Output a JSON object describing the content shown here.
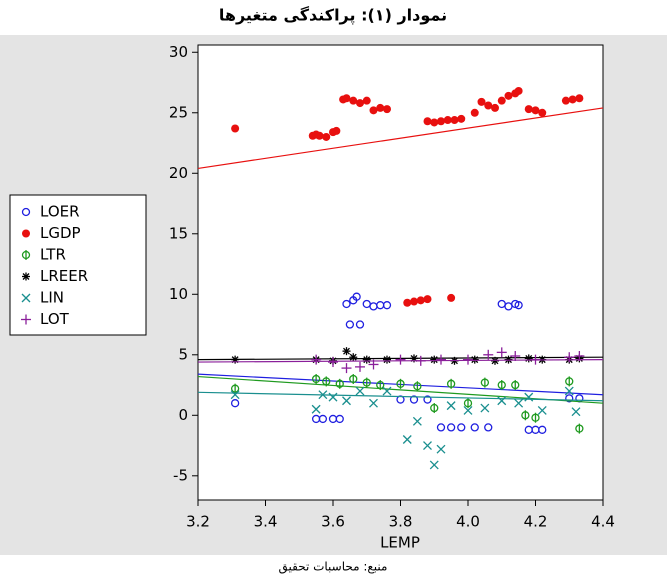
{
  "chart_data": {
    "type": "scatter",
    "title": "نمودار (۱): پراکندگی متغیرها",
    "xlabel": "LEMP",
    "source": "منبع: محاسبات تحقیق",
    "xlim": [
      3.2,
      4.4
    ],
    "ylim": [
      -7,
      30.6
    ],
    "xticks": [
      3.2,
      3.4,
      3.6,
      3.8,
      {
        "value": 4,
        "label": "4.0"
      },
      4.2,
      4.4
    ],
    "yticks": [
      -5,
      0,
      5,
      10,
      15,
      20,
      25,
      30
    ],
    "series": [
      {
        "name": "LOER",
        "color": "#1f1fe0",
        "marker": "open-circle",
        "x": [
          3.31,
          3.55,
          3.57,
          3.6,
          3.62,
          3.64,
          3.65,
          3.66,
          3.67,
          3.68,
          3.7,
          3.72,
          3.74,
          3.76,
          3.8,
          3.84,
          3.88,
          3.92,
          3.95,
          3.98,
          4.02,
          4.06,
          4.1,
          4.12,
          4.14,
          4.15,
          4.18,
          4.2,
          4.22,
          4.3,
          4.33
        ],
        "values": [
          1.0,
          -0.3,
          -0.3,
          -0.3,
          -0.3,
          9.2,
          7.5,
          9.5,
          9.8,
          7.5,
          9.2,
          9.0,
          9.1,
          9.1,
          1.3,
          1.3,
          1.3,
          -1.0,
          -1.0,
          -1.0,
          -1.0,
          -1.0,
          9.2,
          9.0,
          9.2,
          9.1,
          -1.2,
          -1.2,
          -1.2,
          1.4,
          1.4
        ],
        "fit": [
          3.4,
          1.7
        ]
      },
      {
        "name": "LGDP",
        "color": "#e8100f",
        "marker": "filled-circle",
        "x": [
          3.31,
          3.54,
          3.55,
          3.56,
          3.58,
          3.6,
          3.61,
          3.63,
          3.64,
          3.66,
          3.68,
          3.7,
          3.72,
          3.74,
          3.76,
          3.82,
          3.84,
          3.86,
          3.88,
          3.88,
          3.9,
          3.92,
          3.94,
          3.95,
          3.96,
          3.98,
          4.02,
          4.04,
          4.06,
          4.08,
          4.1,
          4.12,
          4.14,
          4.15,
          4.18,
          4.2,
          4.22,
          4.29,
          4.31,
          4.33
        ],
        "values": [
          23.7,
          23.1,
          23.2,
          23.1,
          23.0,
          23.4,
          23.5,
          26.1,
          26.2,
          26.0,
          25.8,
          26.0,
          25.2,
          25.4,
          25.3,
          9.3,
          9.4,
          9.5,
          9.6,
          24.3,
          24.2,
          24.3,
          24.4,
          9.7,
          24.4,
          24.5,
          25.0,
          25.9,
          25.6,
          25.4,
          26.0,
          26.4,
          26.6,
          26.8,
          25.3,
          25.2,
          25.0,
          26.0,
          26.1,
          26.2
        ],
        "fit": [
          20.4,
          25.4
        ]
      },
      {
        "name": "LTR",
        "color": "#1f9a1f",
        "marker": "phi",
        "x": [
          3.31,
          3.55,
          3.58,
          3.62,
          3.66,
          3.7,
          3.74,
          3.8,
          3.85,
          3.9,
          3.95,
          4.0,
          4.05,
          4.1,
          4.14,
          4.17,
          4.2,
          4.3,
          4.33
        ],
        "values": [
          2.2,
          3.0,
          2.8,
          2.6,
          3.0,
          2.7,
          2.5,
          2.6,
          2.4,
          0.6,
          2.6,
          1.0,
          2.7,
          2.5,
          2.5,
          0.0,
          -0.2,
          2.8,
          -1.1
        ],
        "fit": [
          3.2,
          1.0
        ]
      },
      {
        "name": "LREER",
        "color": "#000000",
        "marker": "asterisk",
        "x": [
          3.31,
          3.55,
          3.6,
          3.64,
          3.66,
          3.7,
          3.76,
          3.84,
          3.9,
          3.96,
          4.02,
          4.08,
          4.12,
          4.18,
          4.22,
          4.3,
          4.33
        ],
        "values": [
          4.6,
          4.6,
          4.5,
          5.3,
          4.8,
          4.6,
          4.6,
          4.7,
          4.6,
          4.5,
          4.6,
          4.5,
          4.6,
          4.7,
          4.6,
          4.6,
          4.7
        ],
        "fit": [
          4.6,
          4.8
        ]
      },
      {
        "name": "LIN",
        "color": "#1a8f8f",
        "marker": "cross",
        "x": [
          3.31,
          3.55,
          3.57,
          3.6,
          3.64,
          3.68,
          3.72,
          3.76,
          3.82,
          3.85,
          3.88,
          3.9,
          3.92,
          3.95,
          4.0,
          4.05,
          4.1,
          4.15,
          4.18,
          4.22,
          4.3,
          4.32
        ],
        "values": [
          1.7,
          0.5,
          1.7,
          1.5,
          1.2,
          2.0,
          1.0,
          2.0,
          -2.0,
          -0.5,
          -2.5,
          -4.1,
          -2.8,
          0.8,
          0.4,
          0.6,
          1.2,
          1.0,
          1.5,
          0.4,
          2.0,
          0.3
        ],
        "fit": [
          1.9,
          1.2
        ]
      },
      {
        "name": "LOT",
        "color": "#8a1f9a",
        "marker": "plus",
        "x": [
          3.55,
          3.6,
          3.64,
          3.68,
          3.72,
          3.8,
          3.86,
          3.92,
          4.0,
          4.06,
          4.1,
          4.14,
          4.2,
          4.3,
          4.33
        ],
        "values": [
          4.6,
          4.4,
          3.9,
          4.0,
          4.2,
          4.6,
          4.5,
          4.6,
          4.6,
          5.0,
          5.2,
          4.9,
          4.6,
          4.8,
          4.9
        ],
        "fit": [
          4.4,
          4.6
        ]
      }
    ]
  }
}
